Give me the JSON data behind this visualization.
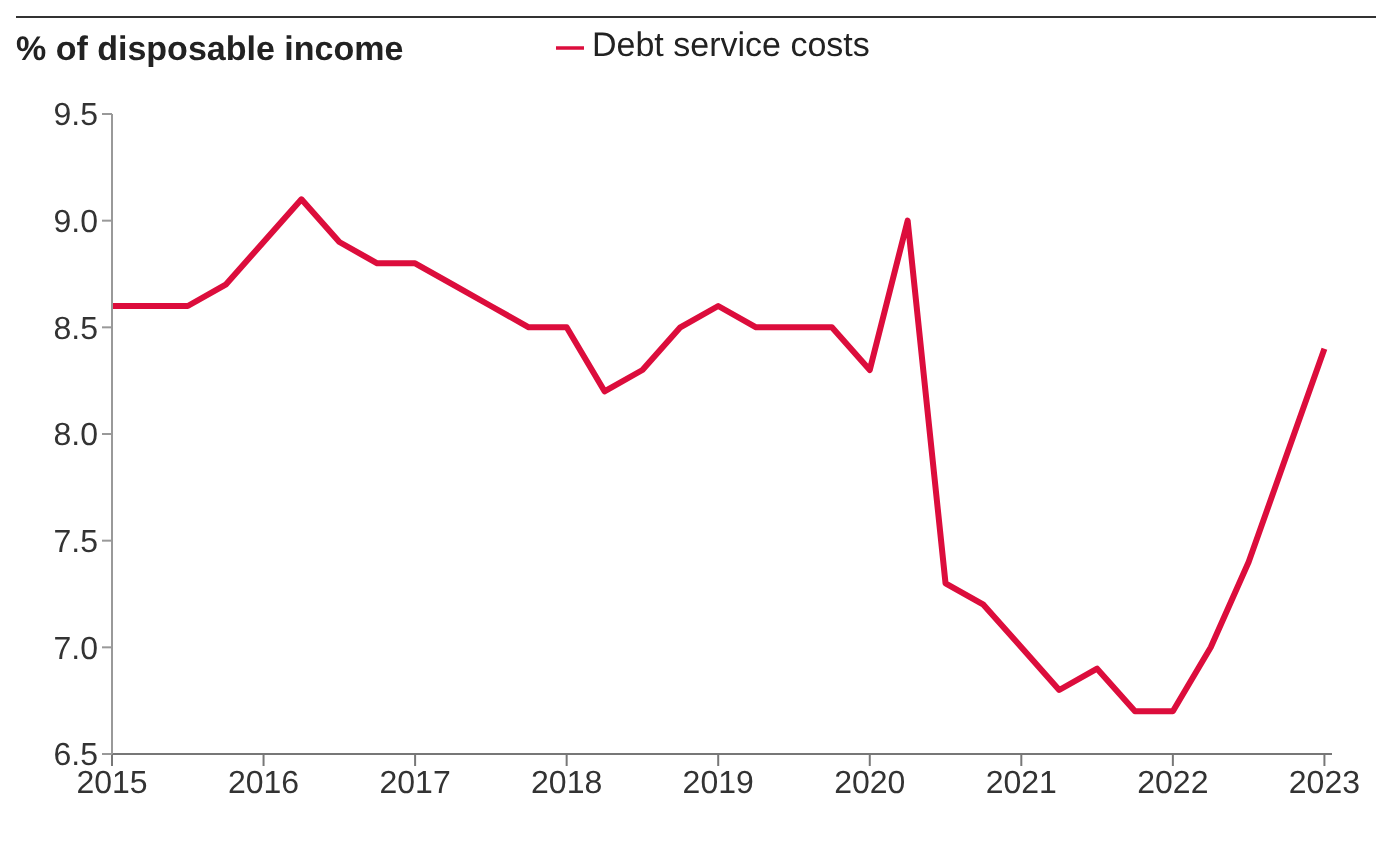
{
  "chart_data": {
    "type": "line",
    "ylabel": "% of disposable income",
    "x": [
      2015,
      2015.25,
      2015.5,
      2015.75,
      2016,
      2016.25,
      2016.5,
      2016.75,
      2017,
      2017.25,
      2017.5,
      2017.75,
      2018,
      2018.25,
      2018.5,
      2018.75,
      2019,
      2019.25,
      2019.5,
      2019.75,
      2020,
      2020.25,
      2020.5,
      2020.75,
      2021,
      2021.25,
      2021.5,
      2021.75,
      2022,
      2022.25,
      2022.5,
      2022.75,
      2023
    ],
    "series": [
      {
        "name": "Debt service costs",
        "color": "#dc0d3c",
        "values": [
          8.6,
          8.6,
          8.6,
          8.7,
          8.9,
          9.1,
          8.9,
          8.8,
          8.8,
          8.7,
          8.6,
          8.5,
          8.5,
          8.2,
          8.3,
          8.5,
          8.6,
          8.5,
          8.5,
          8.5,
          8.3,
          9.0,
          7.3,
          7.2,
          7.0,
          6.8,
          6.9,
          6.7,
          6.7,
          7.0,
          7.4,
          7.9,
          8.4
        ]
      }
    ],
    "xlim": [
      2015,
      2023.05
    ],
    "xticks": [
      2015,
      2016,
      2017,
      2018,
      2019,
      2020,
      2021,
      2022,
      2023
    ],
    "ylim": [
      6.5,
      9.5
    ],
    "yticks": [
      {
        "value": 6.5,
        "label": "6.5"
      },
      {
        "value": 7,
        "label": "7.0"
      },
      {
        "value": 7.5,
        "label": "7.5"
      },
      {
        "value": 8,
        "label": "8.0"
      },
      {
        "value": 8.5,
        "label": "8.5"
      },
      {
        "value": 9,
        "label": "9.0"
      },
      {
        "value": 9.5,
        "label": "9.5"
      }
    ],
    "grid": false,
    "legend": "top",
    "marker": "none",
    "line_style": "solid"
  }
}
